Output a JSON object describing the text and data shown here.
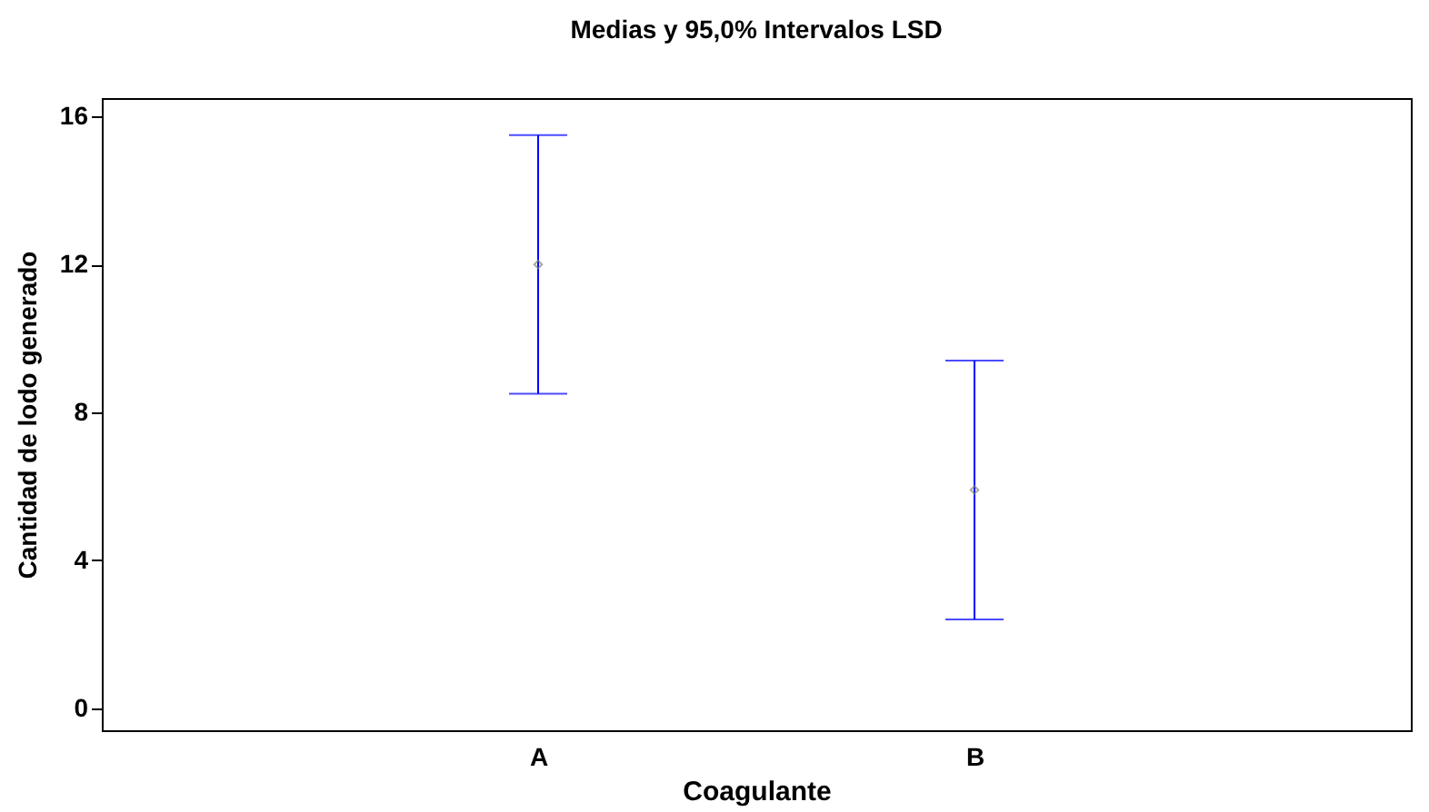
{
  "chart_data": {
    "type": "scatter",
    "title": "Medias y 95,0% Intervalos LSD",
    "xlabel": "Coagulante",
    "ylabel": "Cantidad de lodo generado",
    "categories": [
      "A",
      "B"
    ],
    "series": [
      {
        "color": "#808080",
        "values": [
          12.0,
          5.9
        ],
        "errors": [
          3.5,
          3.5
        ]
      }
    ],
    "ylim": [
      -0.6,
      16.5
    ],
    "yticks": [
      0,
      4,
      8,
      12,
      16
    ],
    "grid": false,
    "marker": "diamond"
  }
}
